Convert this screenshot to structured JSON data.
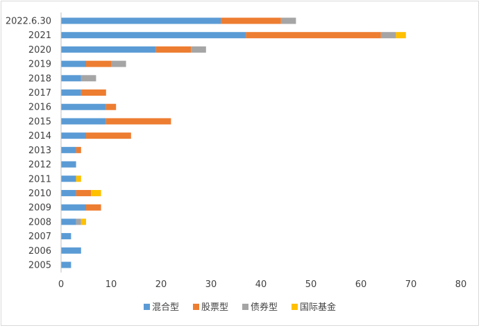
{
  "chart_data": {
    "type": "bar",
    "orientation": "horizontal",
    "stacked": true,
    "categories": [
      "2005",
      "2006",
      "2007",
      "2008",
      "2009",
      "2010",
      "2011",
      "2012",
      "2013",
      "2014",
      "2015",
      "2016",
      "2017",
      "2018",
      "2019",
      "2020",
      "2021",
      "2022.6.30"
    ],
    "series": [
      {
        "name": "混合型",
        "color": "#5b9bd5",
        "values": [
          2,
          4,
          2,
          3,
          5,
          3,
          3,
          3,
          3,
          5,
          9,
          9,
          4,
          4,
          5,
          19,
          37,
          32
        ]
      },
      {
        "name": "股票型",
        "color": "#ed7d31",
        "values": [
          0,
          0,
          0,
          0,
          3,
          3,
          0,
          0,
          1,
          9,
          13,
          2,
          5,
          0,
          5,
          7,
          27,
          12
        ]
      },
      {
        "name": "债券型",
        "color": "#a5a5a5",
        "values": [
          0,
          0,
          0,
          1,
          0,
          0,
          0,
          0,
          0,
          0,
          0,
          0,
          0,
          3,
          3,
          3,
          3,
          3
        ]
      },
      {
        "name": "国际基金",
        "color": "#ffc000",
        "values": [
          0,
          0,
          0,
          1,
          0,
          2,
          1,
          0,
          0,
          0,
          0,
          0,
          0,
          0,
          0,
          0,
          2,
          0
        ]
      }
    ],
    "xlim": [
      0,
      80
    ],
    "xticks": [
      "0",
      "10",
      "20",
      "30",
      "40",
      "50",
      "60",
      "70",
      "80"
    ],
    "grid": false,
    "legend_position": "bottom",
    "title": "",
    "xlabel": "",
    "ylabel": ""
  }
}
